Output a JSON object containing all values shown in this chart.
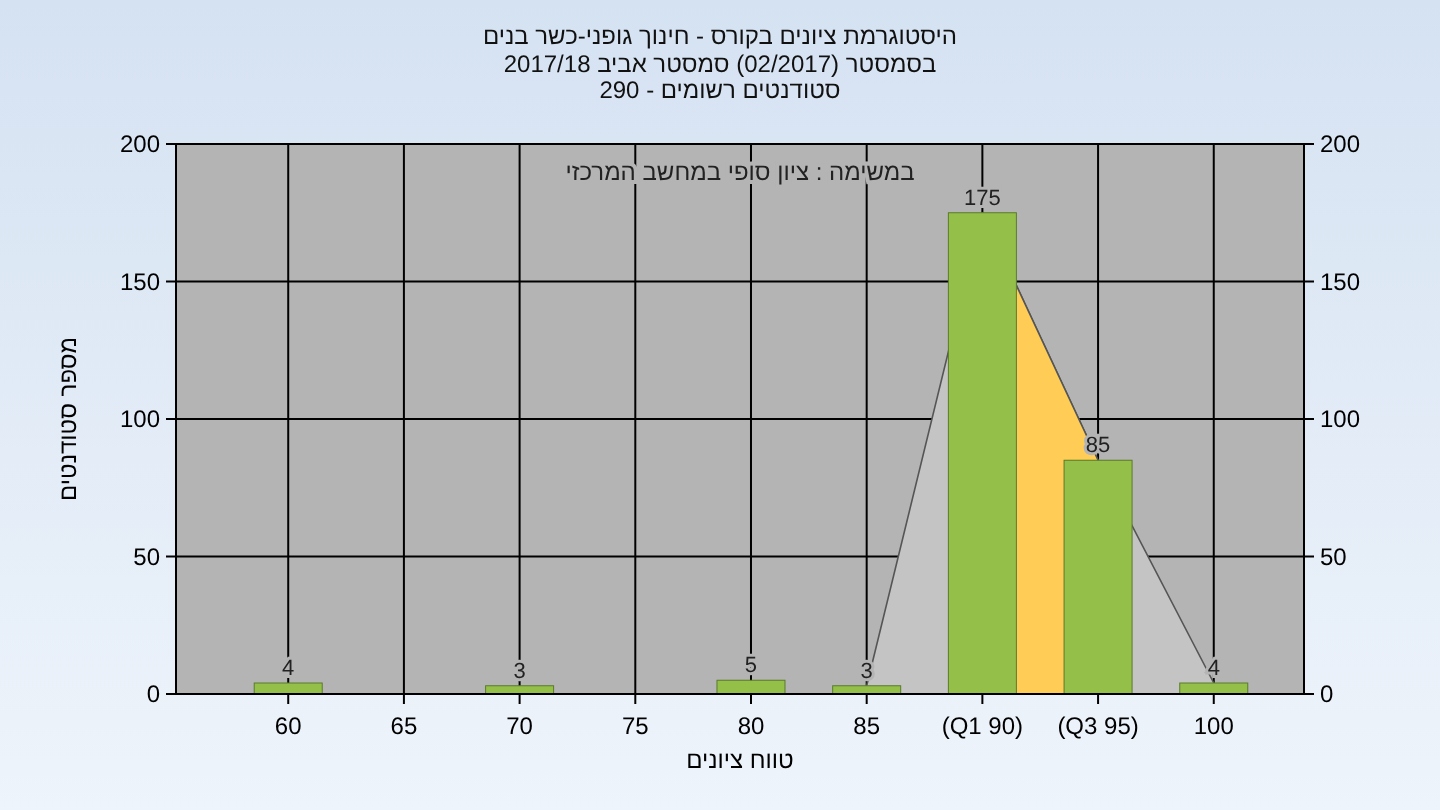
{
  "chart_data": {
    "type": "bar",
    "title": "היסטוגרמת ציונים בקורס - חינוך גופני-כשר בנים",
    "subtitle": "בסמסטר (02/2017) סמסטר אביב 2017/18\nסטודנטים רשומים - 290",
    "xlabel": "טווח ציונים",
    "ylabel": "מספר סטודנטים",
    "annotations": [
      "במשימה : ציון סופי במחשב המרכזי"
    ],
    "categories": [
      "60",
      "65",
      "70",
      "75",
      "80",
      "85",
      "(Q1 90)",
      "(Q3 95)",
      "100"
    ],
    "series": [
      {
        "type": "area",
        "color": "#c4c4c4",
        "values": [
          null,
          null,
          null,
          null,
          null,
          3,
          175,
          85,
          4
        ]
      },
      {
        "type": "area",
        "color": "#ffcc55",
        "values": [
          null,
          null,
          null,
          null,
          null,
          null,
          175,
          85,
          null
        ]
      },
      {
        "type": "bar",
        "color": "#94c04a",
        "values": [
          4,
          null,
          3,
          null,
          5,
          3,
          175,
          85,
          4
        ],
        "value_labels": [
          "4",
          null,
          "3",
          null,
          "5",
          "3",
          "175",
          "85",
          "4"
        ]
      }
    ],
    "ylim": [
      0,
      200
    ],
    "yticks": [
      0,
      50,
      100,
      150,
      200
    ],
    "y2lim": [
      0,
      200
    ],
    "y2ticks": [
      0,
      50,
      100,
      150,
      200
    ],
    "grid": true
  }
}
